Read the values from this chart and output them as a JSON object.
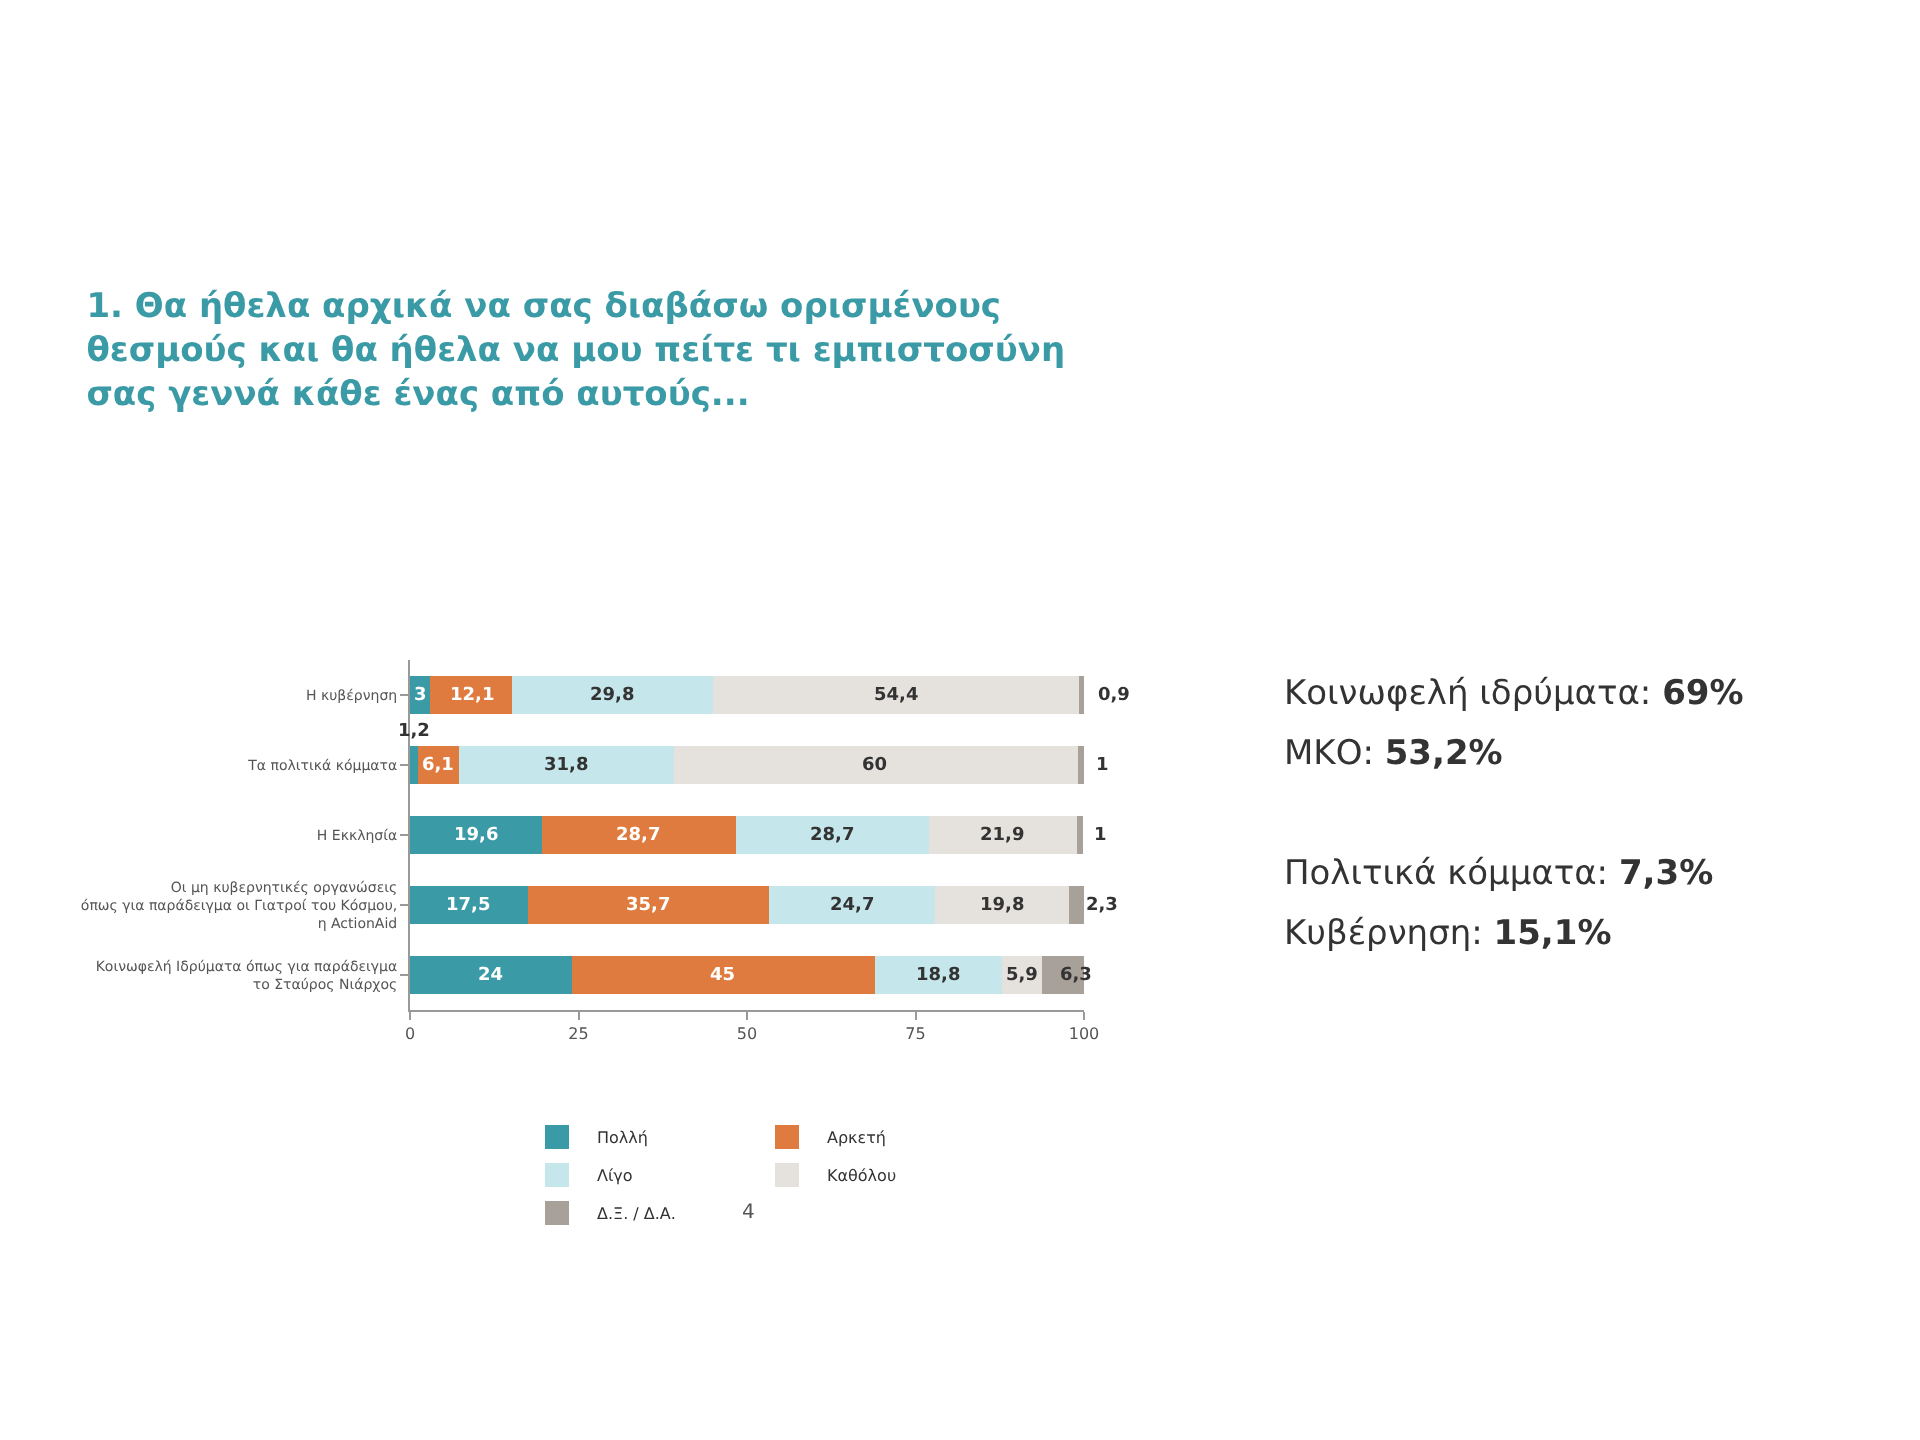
{
  "chart_data": {
    "type": "bar",
    "orientation": "horizontal",
    "stacked": true,
    "title": "1. Θα ήθελα αρχικά να σας διαβάσω ορισμένους\nθεσμούς και θα ήθελα να μου πείτε τι εμπιστοσύνη\nσας γεννά κάθε ένας από αυτούς...",
    "categories": [
      "Η κυβέρνηση",
      "Τα πολιτικά κόμματα",
      "Η Εκκλησία",
      "Οι μη κυβερνητικές οργανώσεις\nόπως για παράδειγμα οι Γιατροί του Κόσμου,\nη ActionAid",
      "Κοινωφελή Ιδρύματα όπως για παράδειγμα\nτο Σταύρος Νιάρχος"
    ],
    "series": [
      {
        "name": "Πολλή",
        "color": "#3a9aa5",
        "values": [
          3,
          1.2,
          19.6,
          17.5,
          24
        ],
        "value_labels": [
          "3",
          "1,2",
          "19,6",
          "17,5",
          "24"
        ]
      },
      {
        "name": "Αρκετή",
        "color": "#e07b3f",
        "values": [
          12.1,
          6.1,
          28.7,
          35.7,
          45
        ],
        "value_labels": [
          "12,1",
          "6,1",
          "28,7",
          "35,7",
          "45"
        ]
      },
      {
        "name": "Λίγο",
        "color": "#c5e6ea",
        "values": [
          29.8,
          31.8,
          28.7,
          24.7,
          18.8
        ],
        "value_labels": [
          "29,8",
          "31,8",
          "28,7",
          "24,7",
          "18,8"
        ]
      },
      {
        "name": "Καθόλου",
        "color": "#e5e2de",
        "values": [
          54.4,
          60,
          21.9,
          19.8,
          5.9
        ],
        "value_labels": [
          "54,4",
          "60",
          "21,9",
          "19,8",
          "5,9"
        ]
      },
      {
        "name": "Δ.Ξ. / Δ.Α.",
        "color": "#a8a19a",
        "values": [
          0.9,
          1,
          1,
          2.3,
          6.3
        ],
        "value_labels": [
          "0,9",
          "1",
          "1",
          "2,3",
          "6,3"
        ]
      }
    ],
    "xlim": [
      0,
      100
    ],
    "xticks": [
      0,
      25,
      50,
      75,
      100
    ],
    "legend": "bottom",
    "annotations": [
      "Κοινωφελή ιδρύματα: 69%",
      "ΜΚΟ: 53,2%",
      "Πολιτικά κόμματα: 7,3%",
      "Κυβέρνηση: 15,1%",
      "4"
    ]
  }
}
